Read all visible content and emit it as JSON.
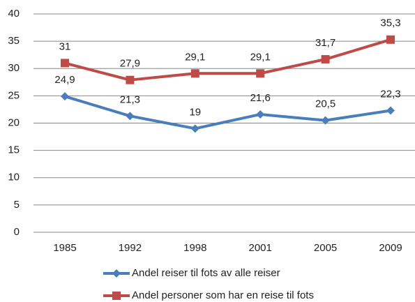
{
  "chart_data": {
    "type": "line",
    "categories": [
      "1985",
      "1992",
      "1998",
      "2001",
      "2005",
      "2009"
    ],
    "series": [
      {
        "name": "Andel reiser til fots av alle reiser",
        "color": "#4a7ebb",
        "marker": "diamond",
        "values": [
          24.9,
          21.3,
          19,
          21.6,
          20.5,
          22.3
        ],
        "value_labels": [
          "24,9",
          "21,3",
          "19",
          "21,6",
          "20,5",
          "22,3"
        ]
      },
      {
        "name": "Andel personer som har en reise til fots",
        "color": "#be4b48",
        "marker": "square",
        "values": [
          31,
          27.9,
          29.1,
          29.1,
          31.7,
          35.3
        ],
        "value_labels": [
          "31",
          "27,9",
          "29,1",
          "29,1",
          "31,7",
          "35,3"
        ]
      }
    ],
    "ylim": [
      0,
      40
    ],
    "yticks": [
      0,
      5,
      10,
      15,
      20,
      25,
      30,
      35,
      40
    ],
    "grid": true,
    "legend": "bottom"
  }
}
